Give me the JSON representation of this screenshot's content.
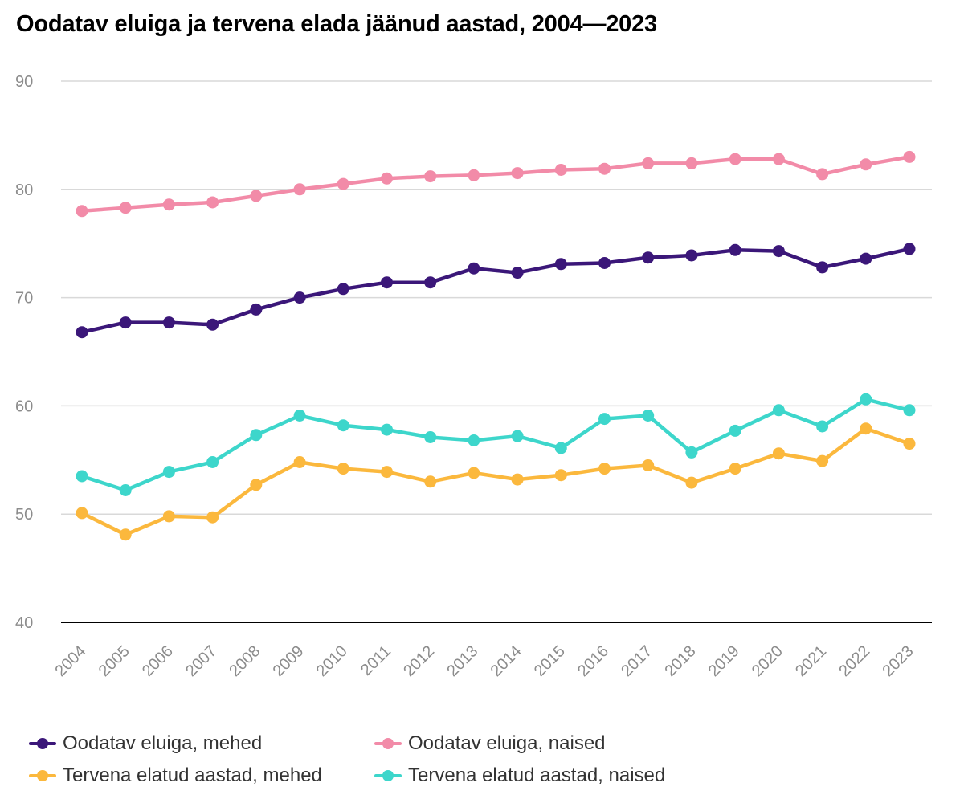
{
  "title": "Oodatav eluiga ja tervena elada jäänud aastad, 2004—2023",
  "chart_data": {
    "type": "line",
    "title": "Oodatav eluiga ja tervena elada jäänud aastad, 2004—2023",
    "xlabel": "",
    "ylabel": "",
    "ylim": [
      40,
      90
    ],
    "yticks": [
      40,
      50,
      60,
      70,
      80,
      90
    ],
    "grid": true,
    "legend_position": "bottom",
    "x": [
      "2004",
      "2005",
      "2006",
      "2007",
      "2008",
      "2009",
      "2010",
      "2011",
      "2012",
      "2013",
      "2014",
      "2015",
      "2016",
      "2017",
      "2018",
      "2019",
      "2020",
      "2021",
      "2022",
      "2023"
    ],
    "series": [
      {
        "name": "Oodatav eluiga, mehed",
        "color": "#3b1779",
        "values": [
          66.8,
          67.7,
          67.7,
          67.5,
          68.9,
          70.0,
          70.8,
          71.4,
          71.4,
          72.7,
          72.3,
          73.1,
          73.2,
          73.7,
          73.9,
          74.4,
          74.3,
          72.8,
          73.6,
          74.5
        ]
      },
      {
        "name": "Oodatav eluiga, naised",
        "color": "#f28ba8",
        "values": [
          78.0,
          78.3,
          78.6,
          78.8,
          79.4,
          80.0,
          80.5,
          81.0,
          81.2,
          81.3,
          81.5,
          81.8,
          81.9,
          82.4,
          82.4,
          82.8,
          82.8,
          81.4,
          82.3,
          83.0
        ]
      },
      {
        "name": "Tervena elatud aastad, mehed",
        "color": "#fbb83d",
        "values": [
          50.1,
          48.1,
          49.8,
          49.7,
          52.7,
          54.8,
          54.2,
          53.9,
          53.0,
          53.8,
          53.2,
          53.6,
          54.2,
          54.5,
          52.9,
          54.2,
          55.6,
          54.9,
          57.9,
          56.5
        ]
      },
      {
        "name": "Tervena elatud aastad, naised",
        "color": "#3dd6cb",
        "values": [
          53.5,
          52.2,
          53.9,
          54.8,
          57.3,
          59.1,
          58.2,
          57.8,
          57.1,
          56.8,
          57.2,
          56.1,
          58.8,
          59.1,
          55.7,
          57.7,
          59.6,
          58.1,
          60.6,
          59.6
        ]
      }
    ]
  }
}
